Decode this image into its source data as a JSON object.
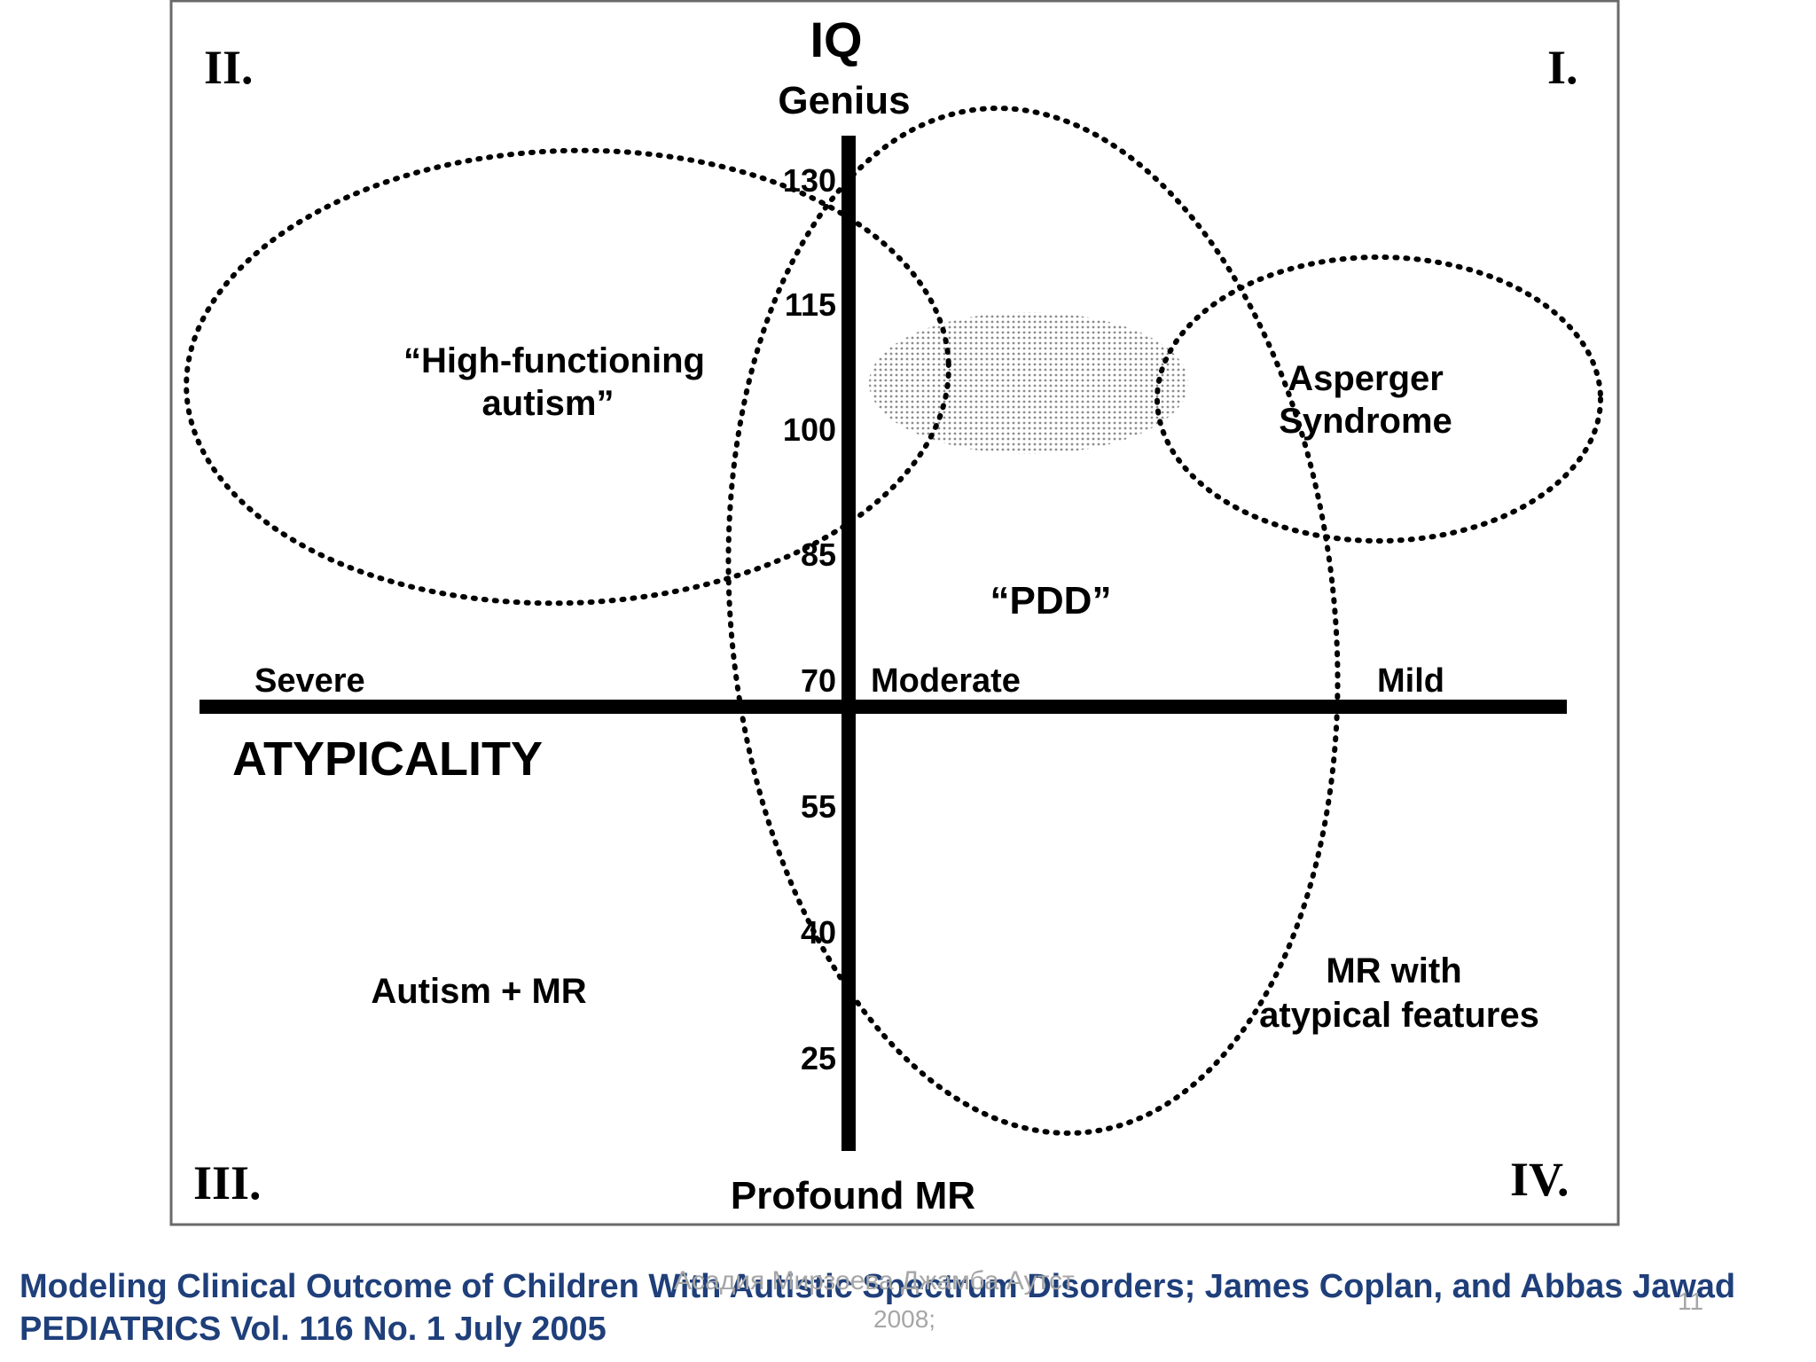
{
  "diagram": {
    "axis_y_title": "IQ",
    "axis_y_top": "Genius",
    "axis_y_bottom": "Profound MR",
    "axis_x_title": "ATYPICALITY",
    "axis_x_labels": {
      "severe": "Severe",
      "moderate": "Moderate",
      "mild": "Mild"
    },
    "iq_ticks": [
      "130",
      "115",
      "100",
      "85",
      "70",
      "55",
      "40",
      "25"
    ],
    "quadrants": {
      "q1": "I.",
      "q2": "II.",
      "q3": "III.",
      "q4": "IV."
    },
    "regions": {
      "hfa_line1": "“High-functioning",
      "hfa_line2": "autism”",
      "asperger_line1": "Asperger",
      "asperger_line2": "Syndrome",
      "pdd": "“PDD”",
      "autism_mr": "Autism + MR",
      "mr_atypical_line1": "MR with",
      "mr_atypical_line2": "atypical features"
    }
  },
  "caption": {
    "line1": "Modeling Clinical Outcome of Children With Autistic Spectrum Disorders; James Coplan, and Abbas Jawad",
    "line2": "PEDIATRICS Vol. 116 No. 1 July 2005"
  },
  "footer": {
    "overlay_text_line1": "Асадия Мирзоева Джамба Аутст",
    "overlay_text_line2": "2008;",
    "slide_number": "11"
  }
}
